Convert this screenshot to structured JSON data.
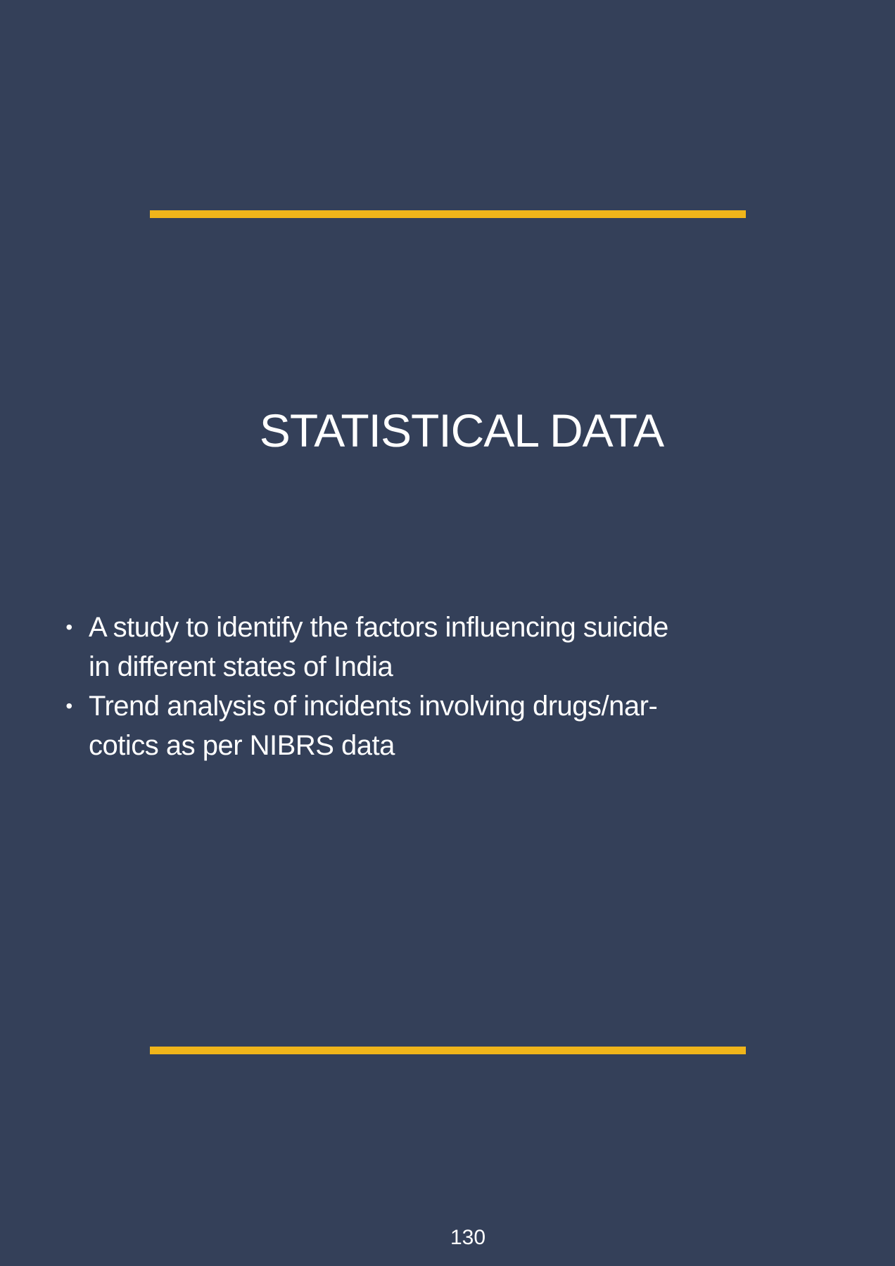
{
  "colors": {
    "background": "#344059",
    "accent": "#f0b51a",
    "text": "#ffffff"
  },
  "title": "STATISTICAL DATA",
  "bullets": [
    {
      "marker": "•",
      "lines": [
        "A study to identify the factors influencing suicide",
        "in different states of India"
      ]
    },
    {
      "marker": "•",
      "lines": [
        "Trend analysis of incidents involving drugs/nar-",
        "cotics as per NIBRS data"
      ]
    }
  ],
  "page_number": "130"
}
